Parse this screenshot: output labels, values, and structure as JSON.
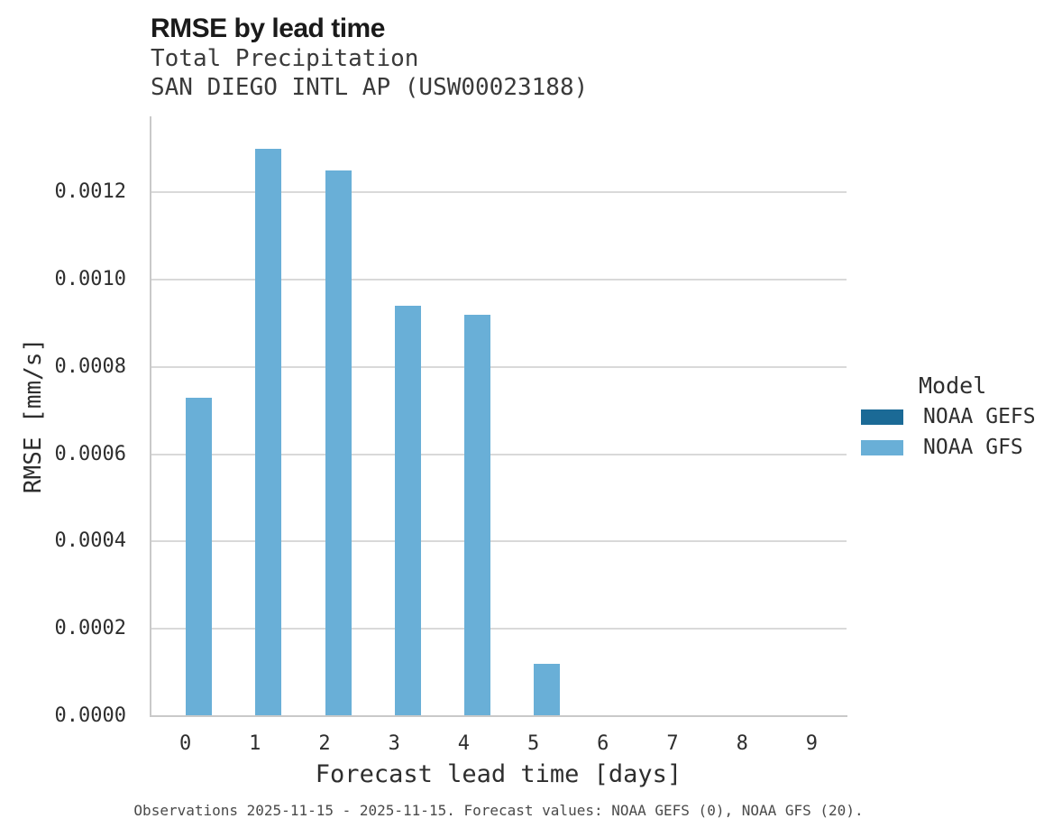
{
  "chart_data": {
    "type": "bar",
    "title": "RMSE by lead time",
    "subtitle": [
      "Total Precipitation",
      "SAN DIEGO INTL AP (USW00023188)"
    ],
    "xlabel": "Forecast lead time [days]",
    "ylabel": "RMSE [mm/s]",
    "categories": [
      "0",
      "1",
      "2",
      "3",
      "4",
      "5",
      "6",
      "7",
      "8",
      "9"
    ],
    "series": [
      {
        "name": "NOAA GEFS",
        "color": "#1b6a96",
        "values": [
          null,
          null,
          null,
          null,
          null,
          null,
          null,
          null,
          null,
          null
        ]
      },
      {
        "name": "NOAA GFS",
        "color": "#69afd7",
        "values": [
          0.00073,
          0.0013,
          0.00125,
          0.00094,
          0.00092,
          0.00012,
          null,
          null,
          null,
          null
        ]
      }
    ],
    "ylim": [
      0,
      0.00137
    ],
    "yticks": [
      {
        "value": 0.0,
        "label": "0.0000"
      },
      {
        "value": 0.0002,
        "label": "0.0002"
      },
      {
        "value": 0.0004,
        "label": "0.0004"
      },
      {
        "value": 0.0006,
        "label": "0.0006"
      },
      {
        "value": 0.0008,
        "label": "0.0008"
      },
      {
        "value": 0.001,
        "label": "0.0010"
      },
      {
        "value": 0.0012,
        "label": "0.0012"
      }
    ],
    "grid": "horizontal",
    "legend_title": "Model",
    "legend_position": "right",
    "caption": "Observations 2025-11-15 - 2025-11-15. Forecast values: NOAA GEFS (0), NOAA GFS (20)."
  }
}
